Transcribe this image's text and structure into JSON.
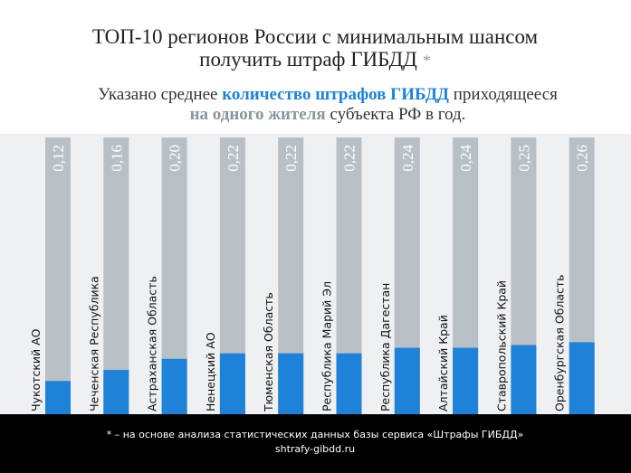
{
  "chart_data": {
    "type": "bar",
    "title": [
      "ТОП-10 регионов России с минимальным шансом",
      "получить штраф ГИБДД"
    ],
    "title_mark": "*",
    "subtitle": [
      [
        {
          "text": "Указано среднее ",
          "style": "plain"
        },
        {
          "text": "количество штрафов ГИБДД",
          "style": "blue"
        },
        {
          "text": " приходящееся",
          "style": "plain"
        }
      ],
      [
        {
          "text": "на одного жителя",
          "style": "gray"
        },
        {
          "text": " субъекта РФ в год.",
          "style": "plain"
        }
      ]
    ],
    "categories": [
      "Чукотский АО",
      "Чеченская Республика",
      "Астраханская Область",
      "Ненецкий АО",
      "Тюменская Область",
      "Республика Марий Эл",
      "Республика Дагестан",
      "Алтайский Край",
      "Ставропольский Край",
      "Оренбургская Область"
    ],
    "values": [
      0.12,
      0.16,
      0.2,
      0.22,
      0.22,
      0.22,
      0.24,
      0.24,
      0.25,
      0.26
    ],
    "value_labels": [
      "0,12",
      "0,16",
      "0,20",
      "0,22",
      "0,22",
      "0,22",
      "0,24",
      "0,24",
      "0,25",
      "0,26"
    ],
    "color": "#1e82d8",
    "track_color": "#b8c0c5",
    "ylim": [
      0,
      1
    ],
    "footnote": [
      "* –  на основе анализа статистических данных базы сервиса «Штрафы ГИБДД»",
      "shtrafy-gibdd.ru"
    ]
  }
}
